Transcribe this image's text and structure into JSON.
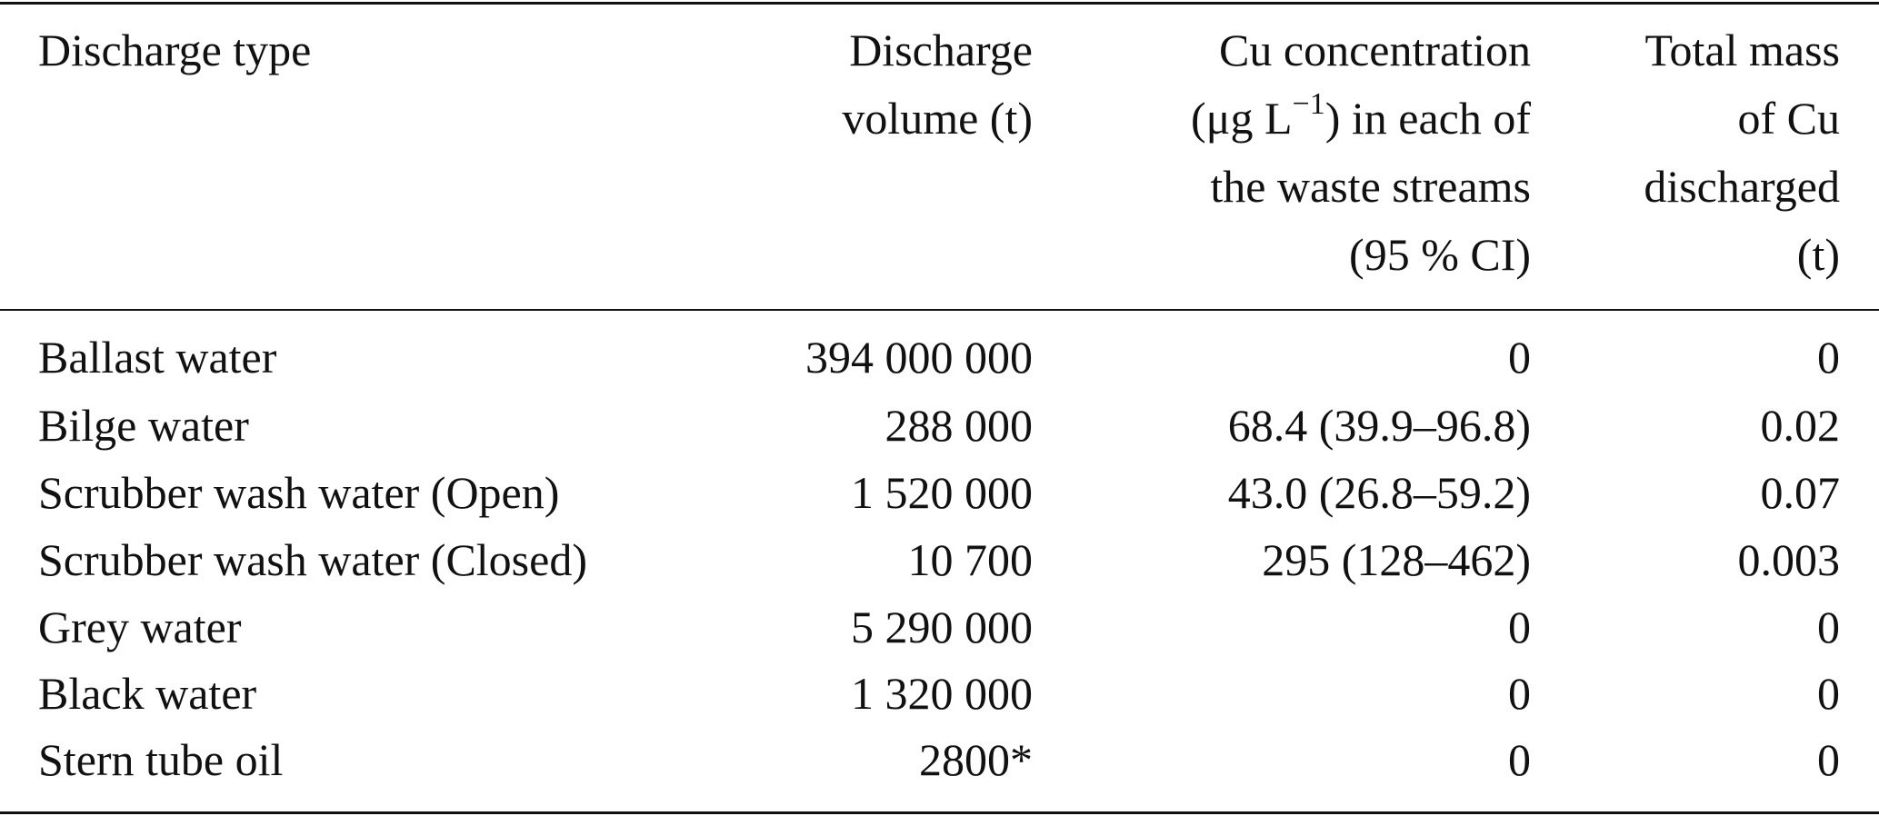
{
  "table": {
    "header": [
      [
        "Discharge type"
      ],
      [
        "Discharge",
        "volume (t)"
      ],
      [
        "Cu concentration",
        [
          "(μg L",
          "−1",
          ") in each of"
        ],
        "the waste streams",
        "(95 % CI)"
      ],
      [
        "Total mass",
        "of Cu",
        "discharged",
        "(t)"
      ]
    ],
    "rows": [
      [
        "Ballast water",
        "394 000 000",
        "0",
        "0"
      ],
      [
        "Bilge water",
        "288 000",
        "68.4 (39.9–96.8)",
        "0.02"
      ],
      [
        "Scrubber wash water (Open)",
        "1 520 000",
        "43.0 (26.8–59.2)",
        "0.07"
      ],
      [
        "Scrubber wash water (Closed)",
        "10 700",
        "295 (128–462)",
        "0.003"
      ],
      [
        "Grey water",
        "5 290 000",
        "0",
        "0"
      ],
      [
        "Black water",
        "1 320 000",
        "0",
        "0"
      ],
      [
        "Stern tube oil",
        "2800*",
        "0",
        "0"
      ]
    ]
  }
}
